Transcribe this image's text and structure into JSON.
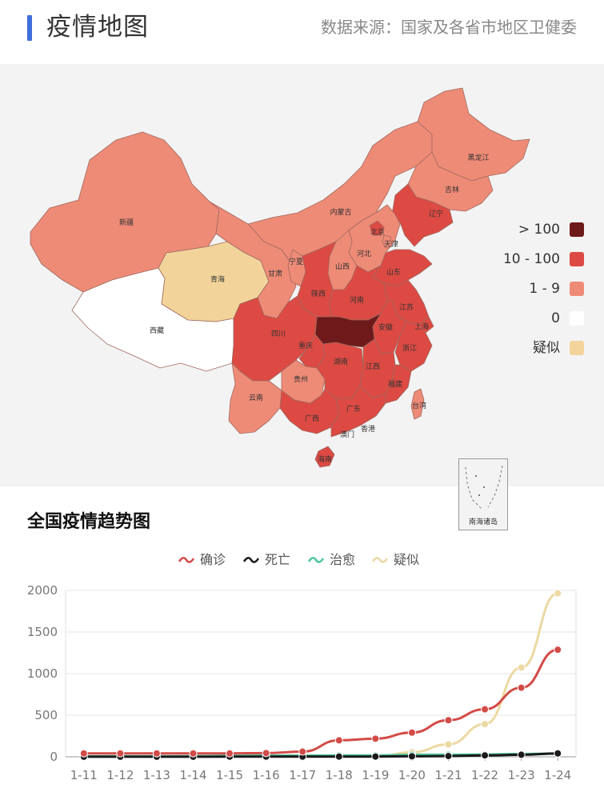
{
  "header": {
    "title": "疫情地图",
    "source": "数据来源：国家及各省市地区卫健委"
  },
  "map": {
    "legend": [
      {
        "label": "> 100",
        "color": "#6e1a1a"
      },
      {
        "label": "10 - 100",
        "color": "#dc4a43"
      },
      {
        "label": "1 - 9",
        "color": "#ee8b77"
      },
      {
        "label": "0",
        "color": "#ffffff"
      },
      {
        "label": "疑似",
        "color": "#f2d49a"
      }
    ],
    "inset_label": "南海诸岛",
    "provinces": {
      "xinjiang": "新疆",
      "xizang": "西藏",
      "qinghai": "青海",
      "gansu": "甘肃",
      "neimenggu": "内蒙古",
      "heilongjiang": "黑龙江",
      "jilin": "吉林",
      "liaoning": "辽宁",
      "beijing": "北京",
      "tianjin": "天津",
      "hebei": "河北",
      "shanxi": "山西",
      "ningxia": "宁夏",
      "shaanxi": "陕西",
      "henan": "河南",
      "shandong": "山东",
      "jiangsu": "江苏",
      "anhui": "安徽",
      "shanghai": "上海",
      "zhejiang": "浙江",
      "sichuan": "四川",
      "chongqing": "重庆",
      "guizhou": "贵州",
      "hunan": "湖南",
      "jiangxi": "江西",
      "fujian": "福建",
      "yunnan": "云南",
      "guangxi": "广西",
      "guangdong": "广东",
      "taiwan": "台湾",
      "aomen": "澳门",
      "xianggang": "香港",
      "hainan": "海南"
    }
  },
  "trend": {
    "title": "全国疫情趋势图"
  },
  "chart_data": {
    "type": "line",
    "categories": [
      "1-11",
      "1-12",
      "1-13",
      "1-14",
      "1-15",
      "1-16",
      "1-17",
      "1-18",
      "1-19",
      "1-20",
      "1-21",
      "1-22",
      "1-23",
      "1-24"
    ],
    "ylim": [
      0,
      2000
    ],
    "yticks": [
      "0",
      "500",
      "1000",
      "1500",
      "2000"
    ],
    "grid": true,
    "legend_position": "top-center",
    "series": [
      {
        "name": "确诊",
        "color": "#d24b47",
        "values": [
          41,
          41,
          41,
          41,
          41,
          45,
          62,
          198,
          218,
          291,
          440,
          571,
          830,
          1287
        ]
      },
      {
        "name": "死亡",
        "color": "#1a1a1a",
        "values": [
          1,
          1,
          1,
          1,
          2,
          2,
          2,
          3,
          3,
          6,
          9,
          17,
          25,
          41
        ]
      },
      {
        "name": "治愈",
        "color": "#4fc59a",
        "values": [
          5,
          6,
          6,
          7,
          12,
          15,
          15,
          17,
          17,
          25,
          25,
          28,
          34,
          38
        ]
      },
      {
        "name": "疑似",
        "color": "#ecd9a2",
        "values": [
          null,
          null,
          null,
          null,
          null,
          null,
          null,
          null,
          0,
          54,
          149,
          393,
          1072,
          1965
        ]
      }
    ]
  }
}
